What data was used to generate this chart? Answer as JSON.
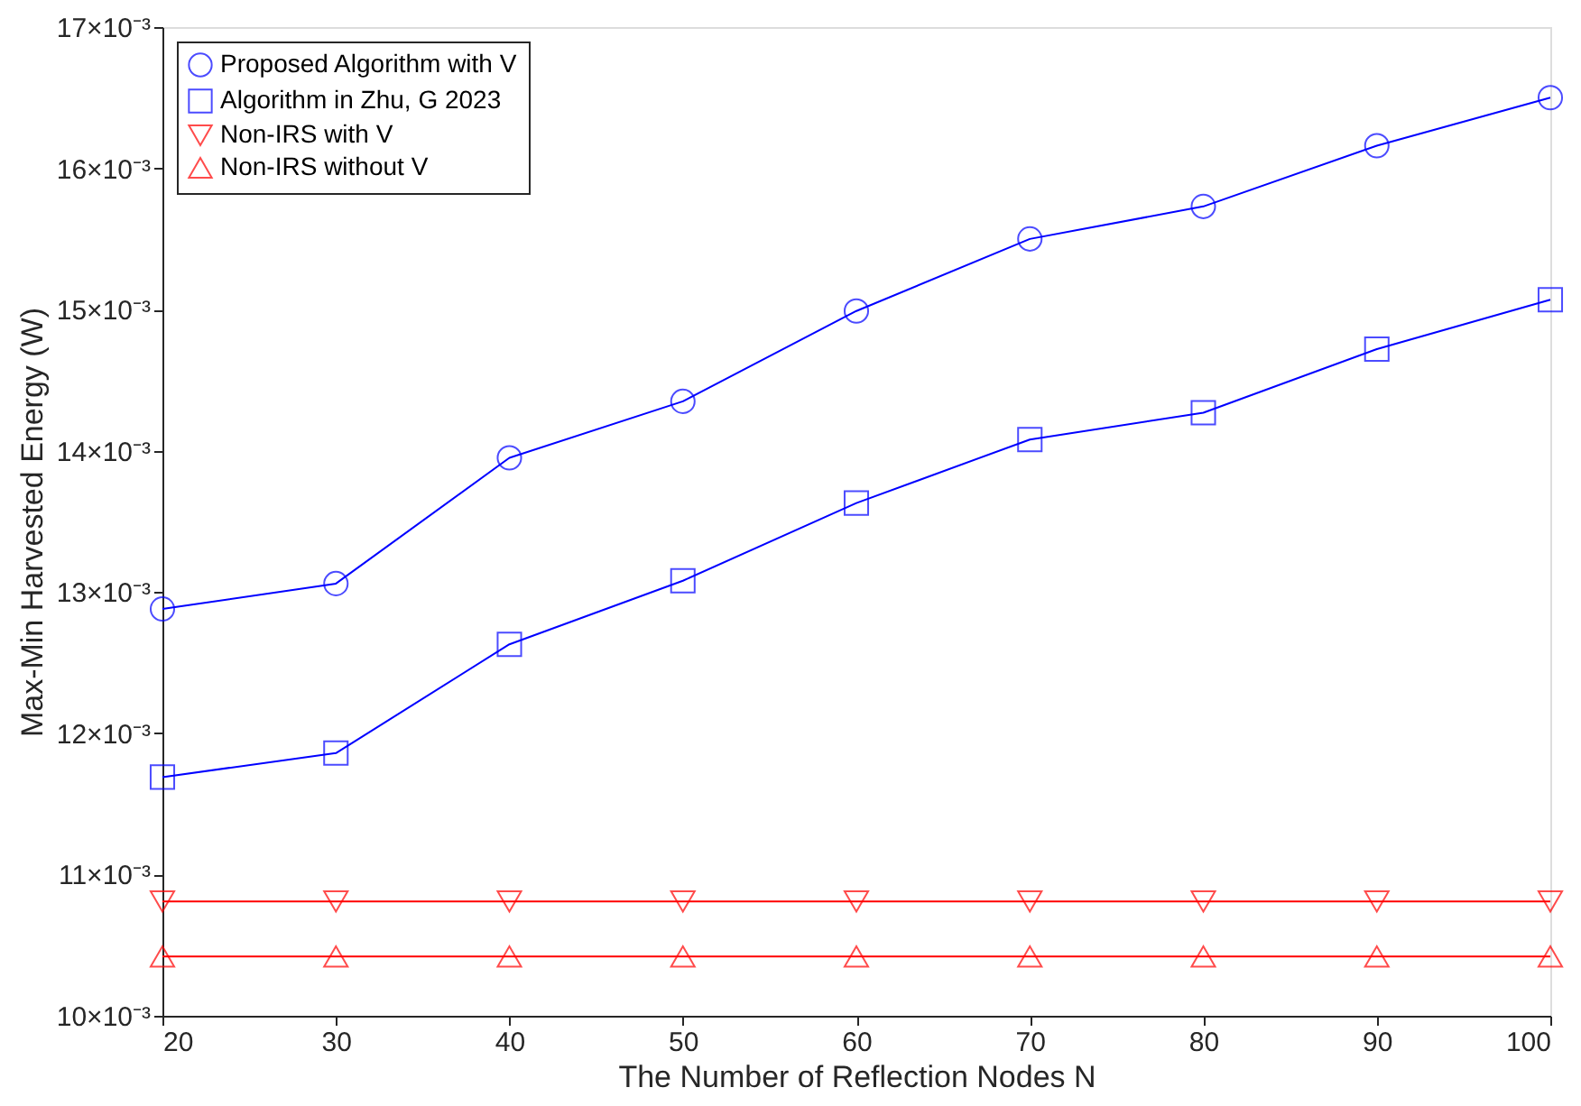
{
  "chart_data": {
    "type": "line",
    "xlabel": "The Number of Reflection Nodes N",
    "ylabel": "Max-Min Harvested Energy (W)",
    "x": [
      20,
      30,
      40,
      50,
      60,
      70,
      80,
      90,
      100
    ],
    "series": [
      {
        "name": "Proposed Algorithm with V",
        "color": "#0000ff",
        "marker": "circle",
        "values": [
          0.01288,
          0.01306,
          0.01395,
          0.01435,
          0.01499,
          0.0155,
          0.01573,
          0.01616,
          0.0165
        ]
      },
      {
        "name": "Algorithm in Zhu, G 2023",
        "color": "#0000ff",
        "marker": "square",
        "values": [
          0.01169,
          0.01186,
          0.01263,
          0.01308,
          0.01363,
          0.01408,
          0.01427,
          0.01472,
          0.01507
        ]
      },
      {
        "name": "Non-IRS with V",
        "color": "#ff0000",
        "marker": "triangle-down",
        "values": [
          0.01081,
          0.01081,
          0.01081,
          0.01081,
          0.01081,
          0.01081,
          0.01081,
          0.01081,
          0.01081
        ]
      },
      {
        "name": "Non-IRS without V",
        "color": "#ff0000",
        "marker": "triangle-up",
        "values": [
          0.01042,
          0.01042,
          0.01042,
          0.01042,
          0.01042,
          0.01042,
          0.01042,
          0.01042,
          0.01042
        ]
      }
    ],
    "xlim": [
      20,
      100
    ],
    "xticks": [
      20,
      30,
      40,
      50,
      60,
      70,
      80,
      90,
      100
    ],
    "ylim": [
      0.01,
      0.017
    ],
    "yticks": [
      {
        "value": 0.01,
        "label": "10×10⁻³"
      },
      {
        "value": 0.011,
        "label": "11×10⁻³"
      },
      {
        "value": 0.012,
        "label": "12×10⁻³"
      },
      {
        "value": 0.013,
        "label": "13×10⁻³"
      },
      {
        "value": 0.014,
        "label": "14×10⁻³"
      },
      {
        "value": 0.015,
        "label": "15×10⁻³"
      },
      {
        "value": 0.016,
        "label": "16×10⁻³"
      },
      {
        "value": 0.017,
        "label": "17×10⁻³"
      }
    ],
    "grid": false,
    "legend": "top left",
    "line_style": "solid"
  }
}
